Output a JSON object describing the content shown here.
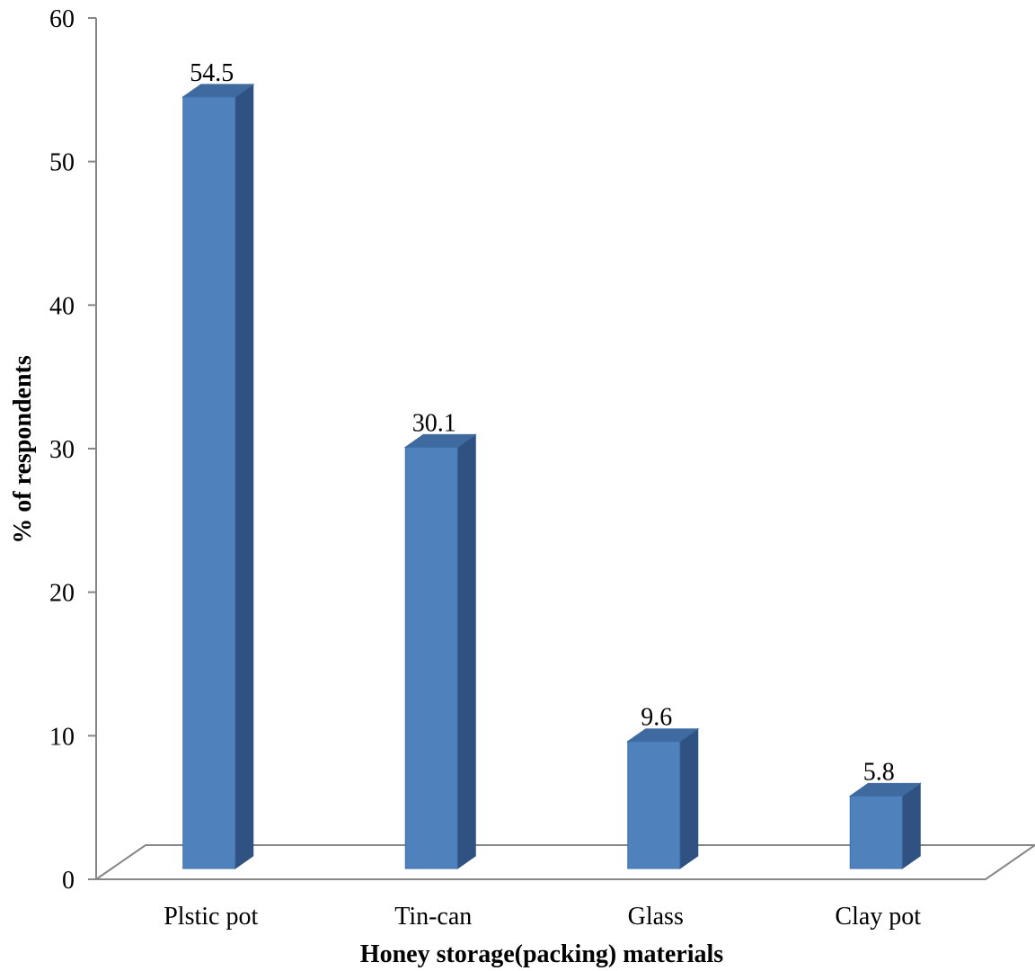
{
  "chart_data": {
    "type": "bar",
    "title": "",
    "xlabel": "Honey storage(packing) materials",
    "ylabel": "% of respondents",
    "categories": [
      "Plstic pot",
      "Tin-can",
      "Glass",
      "Clay pot"
    ],
    "values": [
      54.5,
      30.1,
      9.6,
      5.8
    ],
    "value_labels": [
      "54.5",
      "30.1",
      "9.6",
      "5.8"
    ],
    "ylim": [
      0,
      60
    ],
    "yticks": [
      0,
      10,
      20,
      30,
      40,
      50,
      60
    ],
    "ytick_labels": [
      "0",
      "10",
      "20",
      "30",
      "40",
      "50",
      "60"
    ],
    "grid": false,
    "legend": "none",
    "style": "3d-column",
    "colors": {
      "bar_front": "#4f81bd",
      "bar_side": "#2f5282",
      "bar_top": "#3f6aa0",
      "axis": "#868686"
    }
  }
}
